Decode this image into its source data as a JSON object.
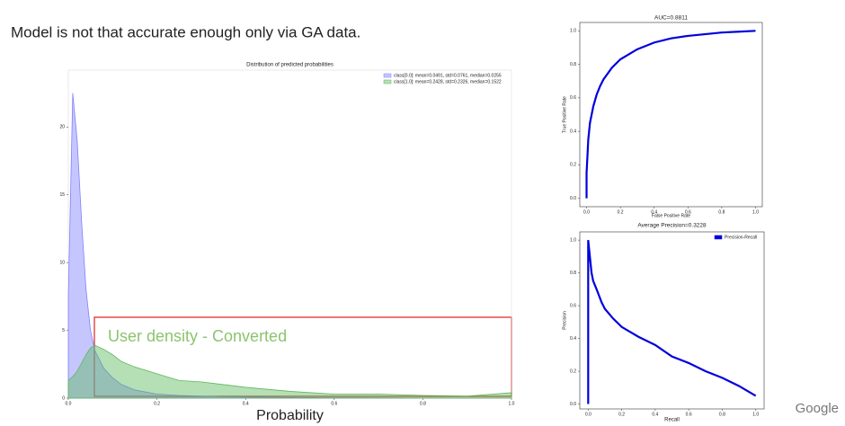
{
  "slide": {
    "heading": "Model is not that accurate enough only via GA data.",
    "logo": "Google"
  },
  "chart_data": [
    {
      "type": "area",
      "title": "Distribution of predicted probabilities",
      "xlabel": "Probability",
      "annotation": "User density - Converted",
      "x": [
        0,
        0.01,
        0.02,
        0.03,
        0.04,
        0.05,
        0.06,
        0.08,
        0.1,
        0.12,
        0.15,
        0.2,
        0.25,
        0.3,
        0.35,
        0.4,
        0.5,
        0.6,
        0.7,
        0.8,
        0.9,
        1.0
      ],
      "series": [
        {
          "name": "class[0.0]: mean=0.0491, std=0.0761, median=0.0255",
          "color": "#8080ff",
          "values": [
            7.5,
            22.5,
            19,
            13,
            8,
            5,
            3.5,
            2.2,
            1.5,
            1,
            0.6,
            0.3,
            0.2,
            0.15,
            0.1,
            0.08,
            0.05,
            0.03,
            0.02,
            0.01,
            0.01,
            0
          ]
        },
        {
          "name": "class[1.0]: mean=0.2428, std=0.2326, median=0.1522",
          "color": "#5cb85c",
          "values": [
            1.3,
            1.6,
            2,
            2.6,
            3.2,
            3.7,
            3.9,
            3.6,
            3.2,
            2.7,
            2.3,
            1.8,
            1.3,
            1.2,
            1.0,
            0.8,
            0.5,
            0.3,
            0.3,
            0.2,
            0.15,
            0.4
          ]
        }
      ],
      "xlim": [
        0,
        1
      ],
      "ylim": [
        0,
        24.2
      ],
      "xticks": [
        {
          "value": 0,
          "label": "0.0"
        },
        {
          "value": 0.2,
          "label": "0.2"
        },
        {
          "value": 0.4,
          "label": "0.4"
        },
        {
          "value": 0.6,
          "label": "0.6"
        },
        {
          "value": 0.8,
          "label": "0.8"
        },
        {
          "value": 1,
          "label": "1.0"
        }
      ],
      "yticks": [
        0,
        5,
        10,
        15,
        20
      ]
    },
    {
      "type": "line",
      "title": "AUC=0.8811",
      "xlabel": "False Positive Rate",
      "ylabel": "True Positive Rate",
      "x": [
        0,
        0,
        0.01,
        0.02,
        0.04,
        0.06,
        0.08,
        0.1,
        0.15,
        0.2,
        0.3,
        0.4,
        0.5,
        0.6,
        0.7,
        0.8,
        0.9,
        1.0
      ],
      "series": [
        {
          "color": "#0000dd",
          "values": [
            0,
            0.15,
            0.35,
            0.45,
            0.55,
            0.62,
            0.67,
            0.71,
            0.78,
            0.83,
            0.89,
            0.93,
            0.955,
            0.97,
            0.98,
            0.99,
            0.995,
            1.0
          ]
        }
      ],
      "xlim": [
        -0.04,
        1.04
      ],
      "ylim": [
        -0.05,
        1.05
      ],
      "xticks": [
        {
          "value": 0,
          "label": "0.0"
        },
        {
          "value": 0.2,
          "label": "0.2"
        },
        {
          "value": 0.4,
          "label": "0.4"
        },
        {
          "value": 0.6,
          "label": "0.6"
        },
        {
          "value": 0.8,
          "label": "0.8"
        },
        {
          "value": 1,
          "label": "1.0"
        }
      ],
      "yticks": [
        {
          "value": 0,
          "label": "0.0"
        },
        {
          "value": 0.2,
          "label": "0.2"
        },
        {
          "value": 0.4,
          "label": "0.4"
        },
        {
          "value": 0.6,
          "label": "0.6"
        },
        {
          "value": 0.8,
          "label": "0.8"
        },
        {
          "value": 1,
          "label": "1.0"
        }
      ]
    },
    {
      "type": "line",
      "title": "Average Precision=0.3228",
      "xlabel": "Recall",
      "ylabel": "Precision",
      "x": [
        0,
        0,
        0.005,
        0.01,
        0.02,
        0.03,
        0.05,
        0.08,
        0.1,
        0.15,
        0.2,
        0.3,
        0.4,
        0.5,
        0.6,
        0.7,
        0.8,
        0.9,
        0.95,
        1.0
      ],
      "series": [
        {
          "name": "Precision-Recall",
          "color": "#0000dd",
          "values": [
            0,
            1.0,
            0.95,
            0.9,
            0.8,
            0.75,
            0.7,
            0.62,
            0.58,
            0.52,
            0.47,
            0.41,
            0.36,
            0.29,
            0.25,
            0.2,
            0.16,
            0.11,
            0.08,
            0.05
          ]
        }
      ],
      "xlim": [
        -0.05,
        1.05
      ],
      "ylim": [
        -0.03,
        1.05
      ],
      "xticks": [
        {
          "value": 0,
          "label": "0.0"
        },
        {
          "value": 0.2,
          "label": "0.2"
        },
        {
          "value": 0.4,
          "label": "0.4"
        },
        {
          "value": 0.6,
          "label": "0.6"
        },
        {
          "value": 0.8,
          "label": "0.8"
        },
        {
          "value": 1,
          "label": "1.0"
        }
      ],
      "yticks": [
        {
          "value": 0,
          "label": "0.0"
        },
        {
          "value": 0.2,
          "label": "0.2"
        },
        {
          "value": 0.4,
          "label": "0.4"
        },
        {
          "value": 0.6,
          "label": "0.6"
        },
        {
          "value": 0.8,
          "label": "0.8"
        },
        {
          "value": 1,
          "label": "1.0"
        }
      ]
    }
  ]
}
